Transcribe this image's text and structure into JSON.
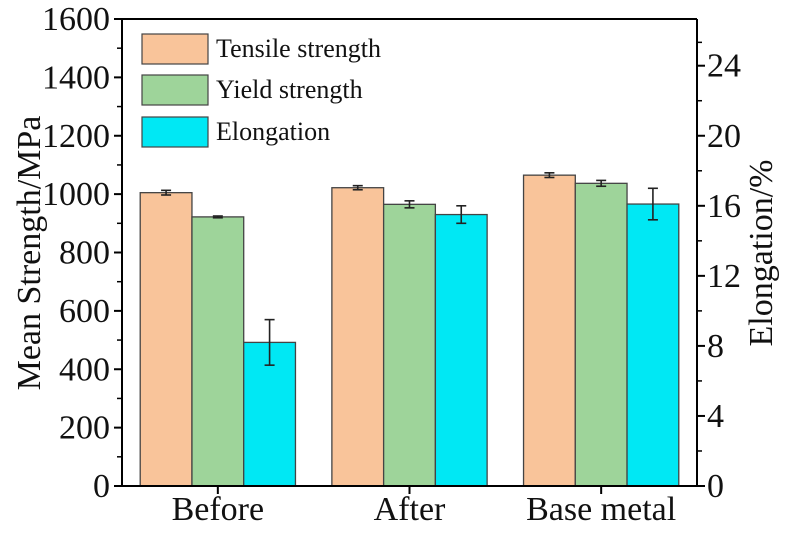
{
  "chart_data": {
    "type": "bar",
    "categories": [
      "Before",
      "After",
      "Base metal"
    ],
    "series": [
      {
        "name": "Tensile strength",
        "axis": "left",
        "color": "#F9C49A",
        "values": [
          1005,
          1022,
          1065
        ],
        "errors": [
          8,
          7,
          8
        ]
      },
      {
        "name": "Yield strength",
        "axis": "left",
        "color": "#9ED49A",
        "values": [
          922,
          965,
          1037
        ],
        "errors": [
          3,
          12,
          10
        ]
      },
      {
        "name": "Elongation",
        "axis": "right",
        "color": "#00E8F4",
        "values": [
          8.2,
          15.5,
          16.1
        ],
        "errors": [
          1.3,
          0.5,
          0.9
        ]
      }
    ],
    "xlabel": "",
    "ylabel": "Mean Strength/MPa",
    "ylim": [
      0,
      1600
    ],
    "yticks": [
      "0",
      "200",
      "400",
      "600",
      "800",
      "1000",
      "1200",
      "1400",
      "1600"
    ],
    "y2label": "Elongation/%",
    "y2lim": [
      0,
      26.6667
    ],
    "y2ticks": [
      "0",
      "4",
      "8",
      "12",
      "16",
      "20",
      "24"
    ],
    "legend_position": "top-left",
    "grid": false
  }
}
